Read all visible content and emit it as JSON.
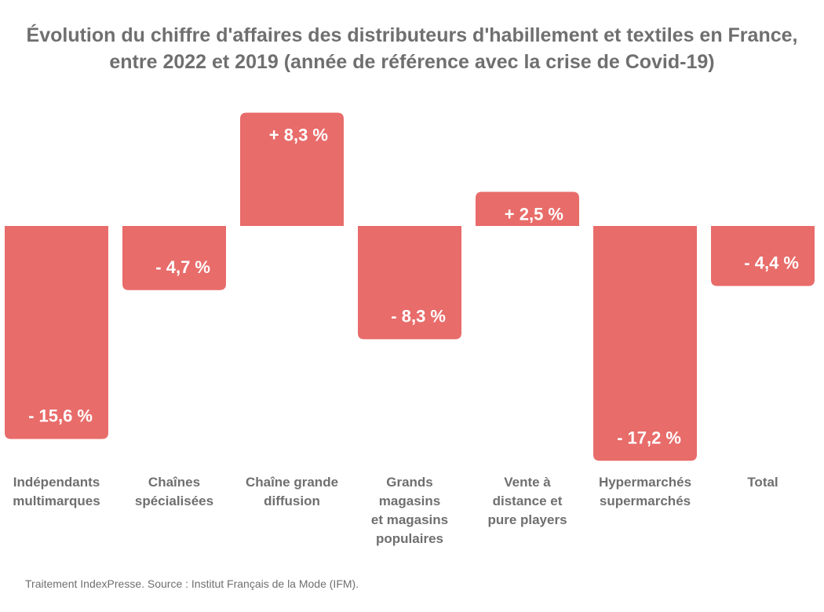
{
  "chart_data": {
    "type": "bar",
    "title_lines": [
      "Évolution du chiffre d'affaires des distributeurs d'habillement et textiles en France,",
      "entre 2022 et 2019 (année de référence avec la crise de Covid-19)"
    ],
    "categories": [
      [
        "Indépendants",
        "multimarques"
      ],
      [
        "Chaînes",
        "spécialisées"
      ],
      [
        "Chaîne grande",
        "diffusion"
      ],
      [
        "Grands",
        "magasins",
        "et magasins",
        "populaires"
      ],
      [
        "Vente à",
        "distance et",
        "pure players"
      ],
      [
        "Hypermarchés",
        "supermarchés"
      ],
      [
        "Total"
      ]
    ],
    "values": [
      -15.6,
      -4.7,
      8.3,
      -8.3,
      2.5,
      -17.2,
      -4.4
    ],
    "data_labels": [
      "- 15,6 %",
      "- 4,7 %",
      "+ 8,3 %",
      "- 8,3 %",
      "+ 2,5 %",
      "- 17,2 %",
      "- 4,4 %"
    ],
    "unit": "%",
    "ylim": [
      -17.2,
      8.3
    ],
    "bar_color": "#e86c6a",
    "text_color": "#6f6f6f",
    "label_color": "#ffffff"
  },
  "source": "Traitement IndexPresse. Source : Institut Français de la Mode (IFM)."
}
